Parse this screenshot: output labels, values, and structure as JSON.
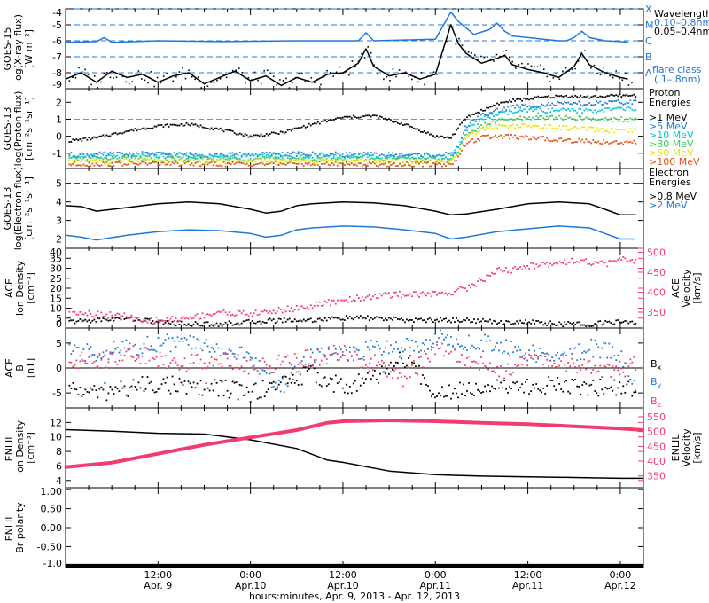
{
  "colors": {
    "black": "#000000",
    "blue": "#1e78dc",
    "cyan": "#00c8d8",
    "green": "#3cc864",
    "yellow": "#e6e600",
    "orange": "#f0a000",
    "red": "#e05010",
    "pink": "#f03c6e"
  },
  "footer": "hours:minutes, Apr.  9, 2013 - Apr. 12, 2013",
  "time_axis": {
    "range": [
      0,
      75
    ],
    "ticks": [
      {
        "t": 12,
        "time": "12:00",
        "date": "Apr. 9"
      },
      {
        "t": 24,
        "time": "0:00",
        "date": "Apr.10"
      },
      {
        "t": 36,
        "time": "12:00",
        "date": "Apr.10"
      },
      {
        "t": 48,
        "time": "0:00",
        "date": "Apr.11"
      },
      {
        "t": 60,
        "time": "12:00",
        "date": "Apr.11"
      },
      {
        "t": 72,
        "time": "0:00",
        "date": "Apr.12"
      }
    ]
  },
  "chart_data": [
    {
      "type": "line",
      "panel": "GOES-15 X-ray flux",
      "ylabel": [
        "GOES-15",
        "log(X-ray flux)",
        "[W m⁻²]"
      ],
      "ylim": [
        -9,
        -4
      ],
      "yticks": [
        -9,
        -8,
        -7,
        -6,
        -5,
        -4
      ],
      "ref_lines": [
        -4,
        -5,
        -6,
        -7,
        -8
      ],
      "flare_class": {
        "labels": [
          "X",
          "M",
          "C",
          "B",
          "A"
        ],
        "title": [
          "flare class",
          "(.1–.8nm)"
        ]
      },
      "legend_title": "Wavelength",
      "series": [
        {
          "name": "0.10–0.8nm",
          "color": "blue",
          "x": [
            0,
            4,
            5,
            6,
            12,
            20,
            30,
            38,
            39,
            40,
            48,
            50,
            51,
            52,
            53,
            55,
            56,
            57,
            58,
            60,
            62,
            64,
            65,
            66,
            67,
            68,
            70,
            72,
            73
          ],
          "y": [
            -6.1,
            -6.05,
            -5.8,
            -6.1,
            -6.0,
            -6.05,
            -6.0,
            -6.0,
            -5.5,
            -6.0,
            -5.9,
            -4.2,
            -4.8,
            -5.2,
            -5.6,
            -5.3,
            -4.9,
            -5.4,
            -5.7,
            -5.8,
            -5.9,
            -6.0,
            -6.0,
            -5.8,
            -5.4,
            -5.8,
            -6.0,
            -6.05,
            -6.1
          ]
        },
        {
          "name": "0.05–0.4nm",
          "color": "black",
          "x": [
            0,
            2,
            4,
            6,
            8,
            10,
            12,
            14,
            16,
            18,
            20,
            22,
            24,
            26,
            28,
            30,
            32,
            34,
            36,
            38,
            39,
            40,
            42,
            44,
            46,
            48,
            50,
            51,
            52,
            54,
            56,
            57,
            58,
            60,
            62,
            64,
            66,
            67,
            68,
            70,
            72,
            73
          ],
          "y": [
            -8.4,
            -8.0,
            -8.6,
            -7.9,
            -8.3,
            -8.1,
            -8.6,
            -8.2,
            -8.0,
            -8.7,
            -8.3,
            -7.9,
            -8.5,
            -8.2,
            -8.8,
            -8.3,
            -8.6,
            -8.1,
            -8.0,
            -7.4,
            -6.5,
            -7.6,
            -8.2,
            -8.0,
            -8.4,
            -8.1,
            -5.0,
            -6.2,
            -6.8,
            -7.4,
            -7.1,
            -6.9,
            -7.5,
            -7.8,
            -8.0,
            -8.3,
            -7.6,
            -6.8,
            -7.5,
            -8.0,
            -8.3,
            -8.4
          ]
        }
      ]
    },
    {
      "type": "scatter",
      "panel": "GOES-13 proton flux",
      "ylabel": [
        "GOES-13",
        "log(Proton flux)",
        "[cm⁻²s⁻¹sr⁻¹]"
      ],
      "ylim": [
        -1.9,
        2.8
      ],
      "yticks": [
        -1,
        0,
        1,
        2
      ],
      "ref_lines": [
        1
      ],
      "legend_title": [
        "Proton",
        "Energies"
      ],
      "series": [
        {
          "name": ">1 MeV",
          "color": "black",
          "x": [
            0,
            4,
            8,
            12,
            16,
            20,
            24,
            28,
            32,
            36,
            40,
            44,
            48,
            50,
            51,
            52,
            54,
            56,
            58,
            60,
            62,
            64,
            66,
            68,
            70,
            72,
            74
          ],
          "y": [
            -0.3,
            -0.1,
            0.3,
            0.6,
            0.7,
            0.4,
            0.0,
            0.2,
            0.7,
            1.1,
            1.2,
            0.7,
            0.0,
            -0.1,
            0.5,
            1.1,
            1.5,
            1.9,
            2.1,
            2.2,
            2.3,
            2.35,
            2.35,
            2.3,
            2.35,
            2.4,
            2.4
          ]
        },
        {
          "name": ">5 MeV",
          "color": "blue",
          "x": [
            0,
            10,
            20,
            30,
            40,
            50,
            51,
            52,
            54,
            56,
            58,
            60,
            64,
            68,
            72,
            74
          ],
          "y": [
            -1.1,
            -1.05,
            -1.1,
            -1.05,
            -1.1,
            -1.1,
            -0.6,
            0.6,
            1.2,
            1.5,
            1.7,
            1.8,
            1.9,
            1.9,
            2.0,
            2.0
          ]
        },
        {
          "name": ">10 MeV",
          "color": "cyan",
          "x": [
            0,
            10,
            20,
            30,
            40,
            50,
            51,
            52,
            54,
            56,
            58,
            60,
            64,
            68,
            72,
            74
          ],
          "y": [
            -1.2,
            -1.15,
            -1.2,
            -1.15,
            -1.2,
            -1.2,
            -0.7,
            0.4,
            1.0,
            1.3,
            1.4,
            1.5,
            1.5,
            1.5,
            1.6,
            1.6
          ]
        },
        {
          "name": ">30 MeV",
          "color": "green",
          "x": [
            0,
            10,
            20,
            30,
            40,
            50,
            51,
            52,
            54,
            56,
            58,
            60,
            64,
            68,
            72,
            74
          ],
          "y": [
            -1.35,
            -1.3,
            -1.35,
            -1.3,
            -1.35,
            -1.35,
            -0.9,
            0.1,
            0.6,
            0.9,
            1.0,
            1.1,
            1.1,
            1.0,
            1.0,
            1.0
          ]
        },
        {
          "name": ">50 MeV",
          "color": "yellow",
          "x": [
            0,
            10,
            20,
            30,
            40,
            50,
            51,
            52,
            54,
            56,
            58,
            60,
            64,
            68,
            72,
            74
          ],
          "y": [
            -1.5,
            -1.45,
            -1.5,
            -1.45,
            -1.5,
            -1.5,
            -1.0,
            -0.1,
            0.4,
            0.6,
            0.6,
            0.6,
            0.5,
            0.4,
            0.3,
            0.3
          ]
        },
        {
          "name": ">100 MeV",
          "color": "red",
          "x": [
            0,
            10,
            20,
            30,
            40,
            50,
            51,
            52,
            54,
            56,
            58,
            60,
            64,
            68,
            72,
            74
          ],
          "y": [
            -1.65,
            -1.6,
            -1.65,
            -1.6,
            -1.65,
            -1.65,
            -1.2,
            -0.4,
            -0.1,
            0.0,
            -0.05,
            -0.1,
            -0.2,
            -0.3,
            -0.35,
            -0.4
          ]
        }
      ]
    },
    {
      "type": "line",
      "panel": "GOES-13 electron flux",
      "ylabel": [
        "GOES-13",
        "log(Electron flux)",
        "[cm⁻²s⁻¹sr⁻¹]"
      ],
      "ylim": [
        1.5,
        5.8
      ],
      "yticks": [
        2,
        3,
        4,
        5
      ],
      "ref_lines": [
        5
      ],
      "legend_title": [
        "Electron",
        "Energies"
      ],
      "series": [
        {
          "name": ">0.8 MeV",
          "color": "black",
          "x": [
            0,
            2,
            4,
            8,
            12,
            16,
            20,
            24,
            26,
            28,
            30,
            32,
            36,
            40,
            44,
            48,
            50,
            52,
            56,
            60,
            64,
            68,
            70,
            72,
            74
          ],
          "y": [
            3.8,
            3.75,
            3.5,
            3.7,
            3.9,
            4.0,
            3.9,
            3.6,
            3.4,
            3.5,
            3.8,
            3.9,
            4.0,
            3.95,
            3.8,
            3.5,
            3.3,
            3.35,
            3.6,
            3.9,
            4.0,
            3.9,
            3.6,
            3.3,
            3.3
          ]
        },
        {
          "name": ">2 MeV",
          "color": "blue",
          "x": [
            0,
            2,
            4,
            8,
            12,
            16,
            20,
            24,
            26,
            28,
            30,
            32,
            36,
            40,
            44,
            48,
            50,
            52,
            56,
            60,
            64,
            68,
            70,
            72,
            74
          ],
          "y": [
            2.2,
            2.1,
            1.95,
            2.2,
            2.4,
            2.5,
            2.45,
            2.3,
            2.1,
            2.2,
            2.5,
            2.6,
            2.7,
            2.65,
            2.5,
            2.3,
            2.0,
            2.1,
            2.4,
            2.55,
            2.7,
            2.6,
            2.3,
            2.0,
            2.0
          ]
        }
      ]
    },
    {
      "type": "scatter",
      "panel": "ACE ion density and velocity",
      "ylabel": [
        "ACE",
        "Ion Density",
        "[cm⁻³]"
      ],
      "ylabel_right": [
        "ACE",
        "Velocity",
        "[km/s]"
      ],
      "ylim": [
        0,
        40
      ],
      "yticks": [
        0,
        5,
        10,
        15,
        20,
        25,
        30,
        35,
        40
      ],
      "ylim_right": [
        310,
        510
      ],
      "yticks_right": [
        350,
        400,
        450,
        500
      ],
      "series": [
        {
          "name": "Ion Density",
          "axis": "left",
          "color": "black",
          "x": [
            0,
            4,
            8,
            12,
            16,
            20,
            24,
            28,
            32,
            36,
            40,
            44,
            48,
            52,
            56,
            60,
            64,
            68,
            72,
            74
          ],
          "y": [
            3,
            4,
            5,
            3,
            2,
            2,
            3,
            4,
            4,
            5,
            5,
            4,
            4,
            4,
            3,
            3,
            2,
            2,
            3,
            3
          ]
        },
        {
          "name": "Velocity",
          "axis": "right",
          "color": "pink",
          "x": [
            0,
            4,
            8,
            10,
            12,
            16,
            20,
            24,
            28,
            32,
            36,
            40,
            44,
            48,
            50,
            52,
            54,
            56,
            58,
            60,
            62,
            64,
            66,
            68,
            70,
            72,
            74
          ],
          "y": [
            355,
            345,
            340,
            325,
            330,
            335,
            350,
            345,
            355,
            365,
            380,
            390,
            395,
            395,
            400,
            410,
            430,
            455,
            455,
            465,
            470,
            475,
            480,
            475,
            470,
            480,
            480
          ]
        }
      ]
    },
    {
      "type": "scatter",
      "panel": "ACE magnetic field",
      "ylabel": [
        "ACE",
        "B",
        "[nT]"
      ],
      "ylim": [
        -8,
        8
      ],
      "yticks": [
        -5,
        0,
        5
      ],
      "legend": [
        "Bx",
        "By",
        "Bz"
      ],
      "series": [
        {
          "name": "Bx",
          "color": "black",
          "x": [
            0,
            4,
            8,
            12,
            16,
            20,
            24,
            28,
            32,
            36,
            40,
            44,
            48,
            52,
            56,
            60,
            64,
            68,
            72,
            74
          ],
          "y": [
            -4,
            -5,
            -4,
            -3,
            -4,
            -4,
            -5,
            -3,
            -1,
            -4,
            -2,
            2,
            -5,
            -4,
            -3,
            -4,
            -3,
            -4,
            -4,
            -4
          ]
        },
        {
          "name": "By",
          "color": "blue",
          "x": [
            0,
            4,
            8,
            12,
            16,
            20,
            24,
            28,
            32,
            36,
            40,
            44,
            48,
            52,
            56,
            60,
            64,
            68,
            72,
            74
          ],
          "y": [
            3,
            3,
            4,
            5,
            5,
            4,
            2,
            -4,
            3,
            2,
            4,
            4,
            6,
            5,
            5,
            3,
            2,
            4,
            3,
            -3
          ]
        },
        {
          "name": "Bz",
          "color": "pink",
          "x": [
            0,
            4,
            8,
            12,
            16,
            20,
            24,
            28,
            32,
            36,
            40,
            44,
            48,
            52,
            56,
            60,
            64,
            68,
            72,
            74
          ],
          "y": [
            2,
            1,
            3,
            2,
            1,
            2,
            0,
            1,
            2,
            3,
            1,
            -2,
            4,
            2,
            -1,
            2,
            1,
            0,
            -1,
            1
          ]
        }
      ]
    },
    {
      "type": "line",
      "panel": "ENLIL ion density and velocity",
      "ylabel": [
        "ENLIL",
        "Ion Density",
        "[cm⁻³]"
      ],
      "ylabel_right": [
        "ENLIL",
        "Velocity",
        "[km/s]"
      ],
      "ylim": [
        3,
        14
      ],
      "yticks": [
        4,
        6,
        8,
        10,
        12
      ],
      "ylim_right": [
        310,
        580
      ],
      "yticks_right": [
        350,
        400,
        450,
        500,
        550
      ],
      "series": [
        {
          "name": "Ion Density",
          "axis": "left",
          "color": "black",
          "x": [
            0,
            6,
            12,
            18,
            24,
            30,
            34,
            36,
            42,
            48,
            54,
            60,
            66,
            72,
            75
          ],
          "y": [
            11,
            10.8,
            10.5,
            10.4,
            9.6,
            8.4,
            6.8,
            6.5,
            5.3,
            4.8,
            4.6,
            4.5,
            4.4,
            4.3,
            4.3
          ]
        },
        {
          "name": "Velocity",
          "axis": "right",
          "color": "pink",
          "x": [
            0,
            6,
            12,
            18,
            24,
            30,
            34,
            36,
            42,
            48,
            54,
            60,
            66,
            72,
            75
          ],
          "y": [
            380,
            395,
            425,
            455,
            480,
            505,
            530,
            535,
            538,
            535,
            530,
            525,
            518,
            510,
            505
          ]
        }
      ]
    },
    {
      "type": "line",
      "panel": "ENLIL Br polarity",
      "ylabel": [
        "ENLIL",
        "Br polarity"
      ],
      "ylim": [
        -1.05,
        1.05
      ],
      "yticks": [
        -1.0,
        -0.5,
        0.0,
        0.5,
        1.0
      ],
      "ytick_labels": [
        "-1.0",
        "-0.50",
        "0.00",
        "0.50",
        "1.00"
      ],
      "series": [
        {
          "name": "Br",
          "color": "black",
          "x": [
            0,
            75
          ],
          "y": [
            -1.0,
            -1.0
          ]
        }
      ]
    }
  ]
}
